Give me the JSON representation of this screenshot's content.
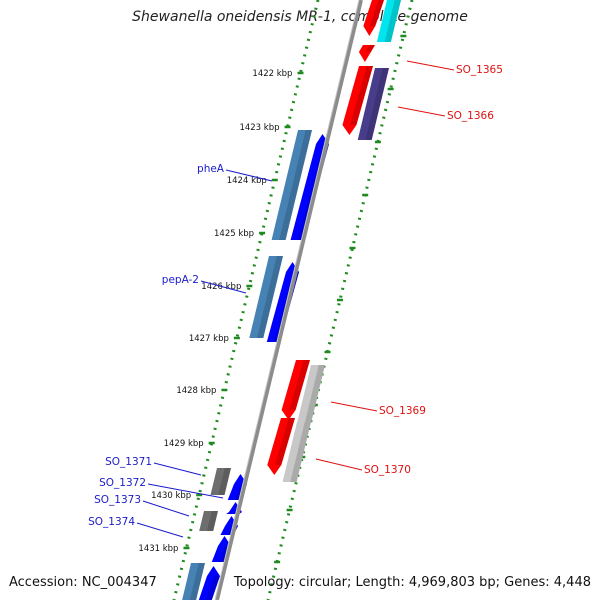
{
  "title": "Shewanella oneidensis MR-1, complete genome",
  "footer": {
    "accession": "Accession: NC_004347",
    "topology": "Topology: circular; Length: 4,969,803 bp; Genes: 4,448"
  },
  "colors": {
    "backbone": "#8a8a8a",
    "dot_track": "#1f8a1f",
    "tick": "#1f8a1f",
    "red_gene": "#ff0000",
    "blue_gene": "#0000ff",
    "steel_gene": "#4682b4",
    "gray_gene": "#6e6e6e",
    "lightgray_gene": "#c8c8c8",
    "slate_gene": "#483d8b",
    "cyan_gene": "#00e5ee",
    "label_left": "#1a1acc",
    "label_right": "#e01010"
  },
  "scale_ticks": [
    {
      "label": "1422 kbp"
    },
    {
      "label": "1423 kbp"
    },
    {
      "label": "1424 kbp"
    },
    {
      "label": "1425 kbp"
    },
    {
      "label": "1426 kbp"
    },
    {
      "label": "1427 kbp"
    },
    {
      "label": "1428 kbp"
    },
    {
      "label": "1429 kbp"
    },
    {
      "label": "1430 kbp"
    },
    {
      "label": "1431 kbp"
    }
  ],
  "gene_labels_left": [
    {
      "text": "pheA"
    },
    {
      "text": "pepA-2"
    },
    {
      "text": "SO_1371"
    },
    {
      "text": "SO_1372"
    },
    {
      "text": "SO_1373"
    },
    {
      "text": "SO_1374"
    }
  ],
  "gene_labels_right": [
    {
      "text": "SO_1365"
    },
    {
      "text": "SO_1366"
    },
    {
      "text": "SO_1369"
    },
    {
      "text": "SO_1370"
    }
  ]
}
